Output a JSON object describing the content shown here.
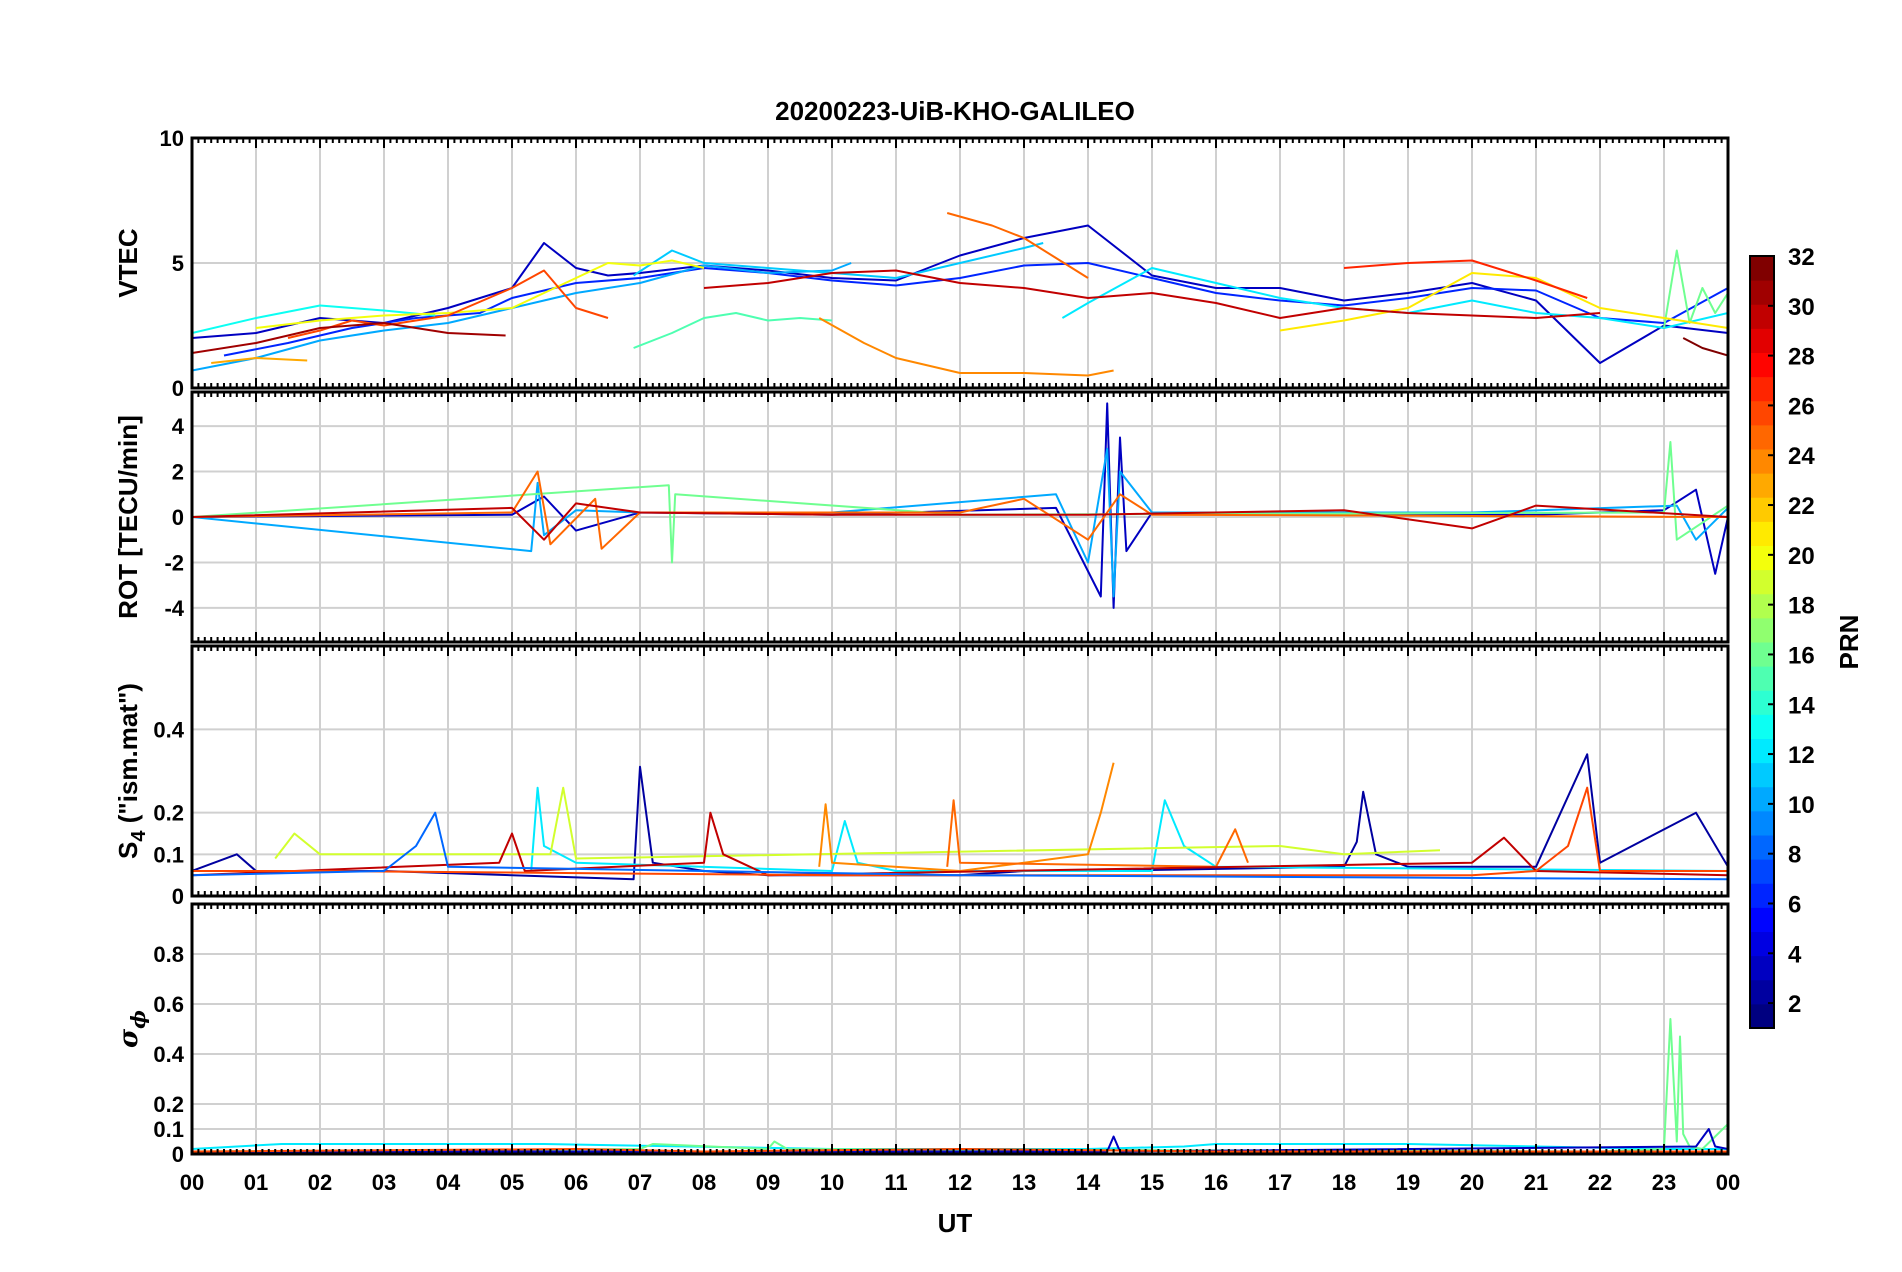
{
  "title": "20200223-UiB-KHO-GALILEO",
  "colors": {
    "axis": "#000000",
    "grid": "#d0d0d0",
    "background": "#ffffff"
  },
  "chart_data": [
    {
      "type": "line",
      "id": "vtec",
      "ylabel": "VTEC",
      "xlim": [
        0,
        24
      ],
      "ylim": [
        0,
        10
      ],
      "yticks": [
        0,
        5,
        10
      ],
      "grid": true,
      "series": [
        {
          "prn": 3,
          "x": [
            0,
            1,
            2,
            3,
            4,
            5,
            5.5,
            6,
            6.5,
            7,
            8,
            9,
            10,
            11,
            12,
            13,
            14,
            15,
            16,
            17,
            18,
            19,
            20,
            21,
            22,
            23,
            24
          ],
          "y": [
            2.0,
            2.2,
            2.8,
            2.6,
            3.2,
            4.0,
            5.8,
            4.8,
            4.5,
            4.6,
            4.9,
            4.7,
            4.4,
            4.3,
            5.3,
            6.0,
            6.5,
            4.5,
            4.0,
            4.0,
            3.5,
            3.8,
            4.2,
            3.5,
            1.0,
            2.5,
            2.2
          ]
        },
        {
          "prn": 6,
          "x": [
            0.5,
            1.5,
            2.5,
            3.5,
            4.5,
            5,
            6,
            7,
            8,
            9,
            10,
            11,
            12,
            13,
            14,
            15,
            16,
            17,
            18,
            19,
            20,
            21,
            22,
            23,
            24
          ],
          "y": [
            1.3,
            1.8,
            2.4,
            2.8,
            3.0,
            3.6,
            4.2,
            4.4,
            4.8,
            4.6,
            4.3,
            4.1,
            4.4,
            4.9,
            5.0,
            4.4,
            3.8,
            3.5,
            3.3,
            3.6,
            4.0,
            3.9,
            2.8,
            2.6,
            4.0
          ]
        },
        {
          "prn": 10,
          "x": [
            0,
            1,
            2,
            3,
            4,
            5,
            6,
            7,
            8,
            9,
            10,
            10.3
          ],
          "y": [
            0.7,
            1.2,
            1.9,
            2.3,
            2.6,
            3.2,
            3.8,
            4.2,
            4.9,
            4.6,
            4.7,
            5.0
          ]
        },
        {
          "prn": 11,
          "x": [
            6.9,
            7.5,
            8,
            9,
            10,
            11,
            12,
            13,
            13.3
          ],
          "y": [
            4.5,
            5.5,
            5.0,
            4.8,
            4.6,
            4.4,
            5.0,
            5.6,
            5.8
          ]
        },
        {
          "prn": 13,
          "x": [
            0,
            1,
            2,
            3,
            3.8
          ],
          "y": [
            2.2,
            2.8,
            3.3,
            3.1,
            2.9
          ]
        },
        {
          "prn": 12,
          "x": [
            13.6,
            14,
            15,
            16,
            17,
            18,
            19,
            20,
            21,
            22,
            23,
            24
          ],
          "y": [
            2.8,
            3.4,
            4.8,
            4.2,
            3.6,
            3.2,
            3.0,
            3.5,
            3.0,
            2.8,
            2.4,
            3.0
          ]
        },
        {
          "prn": 15,
          "x": [
            6.9,
            7.5,
            8,
            8.5,
            9,
            9.5,
            10
          ],
          "y": [
            1.6,
            2.2,
            2.8,
            3.0,
            2.7,
            2.8,
            2.7
          ]
        },
        {
          "prn": 16,
          "x": [
            23.0,
            23.2,
            23.4,
            23.6,
            23.8,
            24
          ],
          "y": [
            2.4,
            5.5,
            2.6,
            4.0,
            3.0,
            3.8
          ]
        },
        {
          "prn": 20,
          "x": [
            1,
            2,
            3,
            4,
            5,
            6,
            6.5,
            7,
            7.5,
            8
          ],
          "y": [
            2.4,
            2.7,
            2.9,
            3.0,
            3.2,
            4.4,
            5.0,
            4.9,
            5.1,
            4.8
          ]
        },
        {
          "prn": 21,
          "x": [
            17,
            18,
            19,
            20,
            21,
            22,
            23,
            24
          ],
          "y": [
            2.3,
            2.7,
            3.2,
            4.6,
            4.4,
            3.2,
            2.8,
            2.4
          ]
        },
        {
          "prn": 23,
          "x": [
            0.3,
            1,
            1.8
          ],
          "y": [
            1.0,
            1.2,
            1.1
          ]
        },
        {
          "prn": 24,
          "x": [
            9.8,
            10.5,
            11,
            12,
            13,
            14,
            14.4
          ],
          "y": [
            2.8,
            1.8,
            1.2,
            0.6,
            0.6,
            0.5,
            0.7
          ]
        },
        {
          "prn": 25,
          "x": [
            11.8,
            12.5,
            13,
            13.5,
            14
          ],
          "y": [
            7.0,
            6.5,
            6.0,
            5.2,
            4.4
          ]
        },
        {
          "prn": 26,
          "x": [
            1.5,
            2,
            2.5,
            3,
            4,
            5,
            5.5,
            6,
            6.5
          ],
          "y": [
            2.0,
            2.3,
            2.7,
            2.5,
            2.9,
            4.0,
            4.7,
            3.2,
            2.8
          ]
        },
        {
          "prn": 27,
          "x": [
            18,
            19,
            20,
            21,
            21.8
          ],
          "y": [
            4.8,
            5.0,
            5.1,
            4.3,
            3.6
          ]
        },
        {
          "prn": 30,
          "x": [
            8,
            9,
            10,
            11,
            12,
            13,
            14,
            15,
            16,
            17,
            18,
            19,
            20,
            21,
            22
          ],
          "y": [
            4.0,
            4.2,
            4.6,
            4.7,
            4.2,
            4.0,
            3.6,
            3.8,
            3.4,
            2.8,
            3.2,
            3.0,
            2.9,
            2.8,
            3.0
          ]
        },
        {
          "prn": 31,
          "x": [
            0,
            1,
            2,
            3,
            4,
            4.9
          ],
          "y": [
            1.4,
            1.8,
            2.4,
            2.6,
            2.2,
            2.1
          ]
        },
        {
          "prn": 32,
          "x": [
            23.3,
            23.6,
            24
          ],
          "y": [
            2.0,
            1.6,
            1.3
          ]
        }
      ]
    },
    {
      "type": "line",
      "id": "rot",
      "ylabel": "ROT [TECU/min]",
      "xlim": [
        0,
        24
      ],
      "ylim": [
        -5.5,
        5.5
      ],
      "yticks": [
        -4,
        -2,
        0,
        2,
        4
      ],
      "grid": true,
      "series": [
        {
          "prn": 3,
          "x": [
            0,
            5,
            5.5,
            6,
            7,
            10,
            13.5,
            14.2,
            14.3,
            14.4,
            14.5,
            14.6,
            15,
            18,
            21,
            23,
            23.5,
            23.8,
            24
          ],
          "y": [
            0,
            0.1,
            0.9,
            -0.6,
            0.2,
            0.1,
            0.4,
            -3.5,
            5.0,
            -4.0,
            3.5,
            -1.5,
            0.2,
            0.1,
            0.1,
            0.3,
            1.2,
            -2.5,
            0
          ]
        },
        {
          "prn": 10,
          "x": [
            0,
            5.3,
            5.4,
            5.5,
            6,
            7,
            10,
            13.5,
            14,
            14.3,
            14.4,
            14.5,
            15,
            20,
            23.2,
            23.5,
            24
          ],
          "y": [
            0,
            -1.5,
            1.5,
            -0.8,
            0.3,
            0.2,
            0.2,
            1.0,
            -2.0,
            3.0,
            -3.5,
            2.0,
            0.2,
            0.2,
            0.5,
            -1.0,
            0.4
          ]
        },
        {
          "prn": 16,
          "x": [
            0,
            7.45,
            7.5,
            7.55,
            12,
            23.0,
            23.1,
            23.2,
            24
          ],
          "y": [
            0,
            1.4,
            -2.0,
            1.0,
            0.1,
            0.2,
            3.3,
            -1.0,
            0.5
          ]
        },
        {
          "prn": 25,
          "x": [
            0,
            5,
            5.4,
            5.6,
            6.3,
            6.4,
            7,
            12,
            13,
            14,
            14.5,
            15,
            24
          ],
          "y": [
            0,
            0.2,
            2.0,
            -1.2,
            0.8,
            -1.4,
            0.2,
            0.2,
            0.8,
            -1.0,
            1.0,
            0.1,
            0
          ]
        },
        {
          "prn": 30,
          "x": [
            0,
            5,
            5.5,
            6,
            7,
            10,
            14,
            18,
            20,
            21,
            24
          ],
          "y": [
            0,
            0.4,
            -1.0,
            0.6,
            0.2,
            0.1,
            0.1,
            0.3,
            -0.5,
            0.5,
            0
          ]
        }
      ]
    },
    {
      "type": "line",
      "id": "s4",
      "ylabel": "S4 (\"ism.mat\")",
      "ylabel_main": "S",
      "ylabel_sub": "4",
      "ylabel_rest": " (\"ism.mat\")",
      "xlim": [
        0,
        24
      ],
      "ylim": [
        0,
        0.6
      ],
      "yticks": [
        0,
        0.1,
        0.2,
        0.4
      ],
      "grid": true,
      "series": [
        {
          "prn": 2,
          "x": [
            0,
            0.7,
            1,
            3,
            5,
            6.9,
            7,
            7.2,
            8,
            9,
            10,
            12,
            13,
            14,
            18,
            18.2,
            18.3,
            18.5,
            19,
            21,
            21.8,
            22,
            23.5,
            24
          ],
          "y": [
            0.06,
            0.1,
            0.06,
            0.06,
            0.05,
            0.04,
            0.31,
            0.08,
            0.06,
            0.05,
            0.05,
            0.05,
            0.06,
            0.06,
            0.07,
            0.13,
            0.25,
            0.1,
            0.07,
            0.07,
            0.34,
            0.08,
            0.2,
            0.07
          ]
        },
        {
          "prn": 12,
          "x": [
            5.3,
            5.4,
            5.5,
            6,
            10,
            10.2,
            10.4,
            11,
            15,
            15.2,
            15.5,
            16,
            24
          ],
          "y": [
            0.06,
            0.26,
            0.12,
            0.08,
            0.06,
            0.18,
            0.08,
            0.06,
            0.06,
            0.23,
            0.12,
            0.07,
            0.06
          ]
        },
        {
          "prn": 19,
          "x": [
            1.3,
            1.6,
            2,
            5.6,
            5.8,
            6,
            17,
            18,
            19.5
          ],
          "y": [
            0.09,
            0.15,
            0.1,
            0.1,
            0.26,
            0.09,
            0.12,
            0.1,
            0.11
          ]
        },
        {
          "prn": 24,
          "x": [
            9.8,
            9.9,
            10,
            12,
            13,
            14,
            14.2,
            14.4
          ],
          "y": [
            0.07,
            0.22,
            0.08,
            0.06,
            0.08,
            0.1,
            0.2,
            0.32
          ]
        },
        {
          "prn": 25,
          "x": [
            11.8,
            11.9,
            12,
            16,
            16.3,
            16.5
          ],
          "y": [
            0.07,
            0.23,
            0.08,
            0.07,
            0.16,
            0.08
          ]
        },
        {
          "prn": 30,
          "x": [
            0,
            4.8,
            5,
            5.2,
            8,
            8.1,
            8.3,
            9,
            20,
            20.5,
            21,
            24
          ],
          "y": [
            0.05,
            0.08,
            0.15,
            0.06,
            0.08,
            0.2,
            0.1,
            0.05,
            0.08,
            0.14,
            0.06,
            0.05
          ]
        },
        {
          "prn": 26,
          "x": [
            0,
            2,
            10,
            20,
            21,
            21.5,
            21.8,
            22,
            24
          ],
          "y": [
            0.06,
            0.06,
            0.05,
            0.05,
            0.06,
            0.12,
            0.26,
            0.06,
            0.06
          ]
        },
        {
          "prn": 8,
          "x": [
            0,
            3,
            3.5,
            3.8,
            4,
            8,
            12,
            24
          ],
          "y": [
            0.05,
            0.06,
            0.12,
            0.2,
            0.07,
            0.06,
            0.05,
            0.04
          ]
        }
      ]
    },
    {
      "type": "line",
      "id": "sigma_phi",
      "ylabel": "σ ϕ",
      "ylabel_main": "σ",
      "ylabel_sub": "ϕ",
      "xlim": [
        0,
        24
      ],
      "ylim": [
        0,
        1
      ],
      "yticks": [
        0,
        0.1,
        0.2,
        0.4,
        0.6,
        0.8
      ],
      "grid": true,
      "series": [
        {
          "prn": 12,
          "x": [
            0,
            1.4,
            5.5,
            10,
            14,
            15.5,
            16,
            19,
            23,
            24
          ],
          "y": [
            0.02,
            0.04,
            0.04,
            0.02,
            0.02,
            0.03,
            0.04,
            0.04,
            0.02,
            0.02
          ]
        },
        {
          "prn": 16,
          "x": [
            0,
            7,
            7.2,
            9,
            9.1,
            9.3,
            22,
            23.0,
            23.1,
            23.2,
            23.25,
            23.3,
            23.4,
            23.6,
            24
          ],
          "y": [
            0.01,
            0.02,
            0.04,
            0.02,
            0.05,
            0.02,
            0.01,
            0.02,
            0.54,
            0.05,
            0.47,
            0.08,
            0.03,
            0.02,
            0.12
          ]
        },
        {
          "prn": 3,
          "x": [
            0,
            14.3,
            14.4,
            14.5,
            23.5,
            23.7,
            23.8,
            24
          ],
          "y": [
            0.01,
            0.01,
            0.07,
            0.01,
            0.03,
            0.1,
            0.03,
            0.02
          ]
        },
        {
          "prn": 26,
          "x": [
            0,
            6,
            8,
            12,
            16,
            20,
            24
          ],
          "y": [
            0.01,
            0.02,
            0.01,
            0.02,
            0.01,
            0.01,
            0.01
          ]
        }
      ]
    }
  ],
  "xaxis": {
    "label": "UT",
    "ticks": [
      "00",
      "01",
      "02",
      "03",
      "04",
      "05",
      "06",
      "07",
      "08",
      "09",
      "10",
      "11",
      "12",
      "13",
      "14",
      "15",
      "16",
      "17",
      "18",
      "19",
      "20",
      "21",
      "22",
      "23",
      "00"
    ]
  },
  "colorbar": {
    "label": "PRN",
    "min": 1,
    "max": 32,
    "ticks": [
      "2",
      "4",
      "6",
      "8",
      "10",
      "12",
      "14",
      "16",
      "18",
      "20",
      "22",
      "24",
      "26",
      "28",
      "30",
      "32"
    ],
    "colormap": "jet"
  }
}
